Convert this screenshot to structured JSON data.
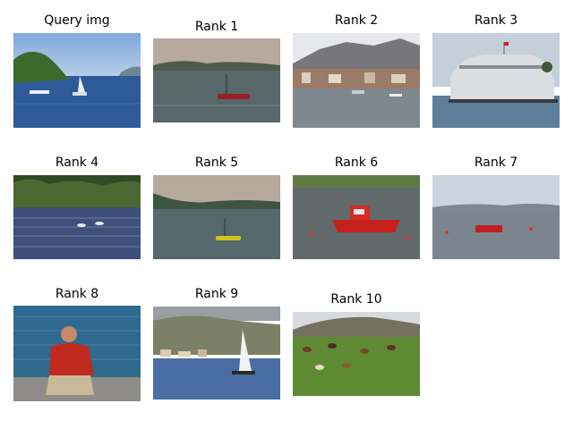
{
  "figure": {
    "cells": [
      {
        "title": "Query img",
        "scene": "coastal bay with islands and sailboats"
      },
      {
        "title": "Rank 1",
        "scene": "calm water with small red boat at dusk"
      },
      {
        "title": "Rank 2",
        "scene": "harbor town with mountains and boats"
      },
      {
        "title": "Rank 3",
        "scene": "large white ship on water"
      },
      {
        "title": "Rank 4",
        "scene": "choppy water with trees on shore"
      },
      {
        "title": "Rank 5",
        "scene": "calm water with small yellow boat at dusk"
      },
      {
        "title": "Rank 6",
        "scene": "red fishing boat on grey water"
      },
      {
        "title": "Rank 7",
        "scene": "small red boat on open water"
      },
      {
        "title": "Rank 8",
        "scene": "man in red jacket sitting by the sea"
      },
      {
        "title": "Rank 9",
        "scene": "white sailboat near hillside village"
      },
      {
        "title": "Rank 10",
        "scene": "cattle grazing on green field"
      }
    ]
  }
}
